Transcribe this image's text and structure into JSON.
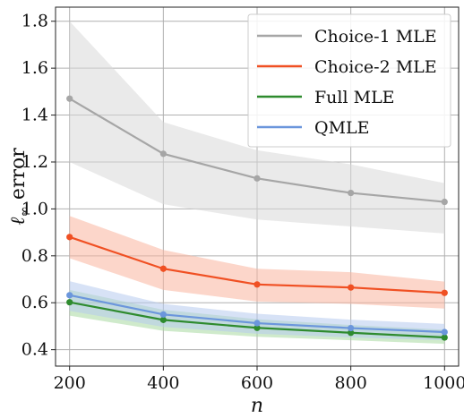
{
  "chart_data": {
    "type": "line",
    "title": "",
    "xlabel": "n",
    "ylabel": "ℓ∞ error",
    "ylabel_parts": {
      "symbol": "ℓ",
      "subscript": "∞",
      "text": " error"
    },
    "x": [
      200,
      400,
      600,
      800,
      1000
    ],
    "xticks": [
      200,
      400,
      600,
      800,
      1000
    ],
    "yticks": [
      0.4,
      0.6,
      0.8,
      1.0,
      1.2,
      1.4,
      1.6,
      1.8
    ],
    "ytick_labels": [
      "0.4",
      "0.6",
      "0.8",
      "1.0",
      "1.2",
      "1.4",
      "1.6",
      "1.8"
    ],
    "xlim": [
      170,
      1030
    ],
    "ylim": [
      0.33,
      1.86
    ],
    "grid": true,
    "legend_position": "top-right",
    "series": [
      {
        "name": "Choice-1 MLE",
        "color": "#a6a6a6",
        "band_color": "#d9d9d9",
        "values": [
          1.47,
          1.235,
          1.13,
          1.068,
          1.03
        ],
        "lower": [
          1.2,
          1.02,
          0.955,
          0.925,
          0.895
        ],
        "upper": [
          1.8,
          1.37,
          1.25,
          1.19,
          1.11
        ]
      },
      {
        "name": "Choice-2 MLE",
        "color": "#f05023",
        "band_color": "#f9b49e",
        "values": [
          0.88,
          0.745,
          0.678,
          0.665,
          0.642
        ],
        "lower": [
          0.79,
          0.655,
          0.605,
          0.595,
          0.575
        ],
        "upper": [
          0.97,
          0.825,
          0.745,
          0.73,
          0.69
        ]
      },
      {
        "name": "Full MLE",
        "color": "#2e8b2e",
        "band_color": "#a8d8a0",
        "values": [
          0.602,
          0.527,
          0.493,
          0.472,
          0.452
        ],
        "lower": [
          0.545,
          0.48,
          0.455,
          0.44,
          0.425
        ],
        "upper": [
          0.655,
          0.57,
          0.53,
          0.505,
          0.485
        ]
      },
      {
        "name": "QMLE",
        "color": "#6b96dc",
        "band_color": "#b7cbee",
        "values": [
          0.632,
          0.55,
          0.513,
          0.492,
          0.475
        ],
        "lower": [
          0.565,
          0.497,
          0.468,
          0.452,
          0.44
        ],
        "upper": [
          0.692,
          0.595,
          0.553,
          0.528,
          0.51
        ]
      }
    ]
  }
}
